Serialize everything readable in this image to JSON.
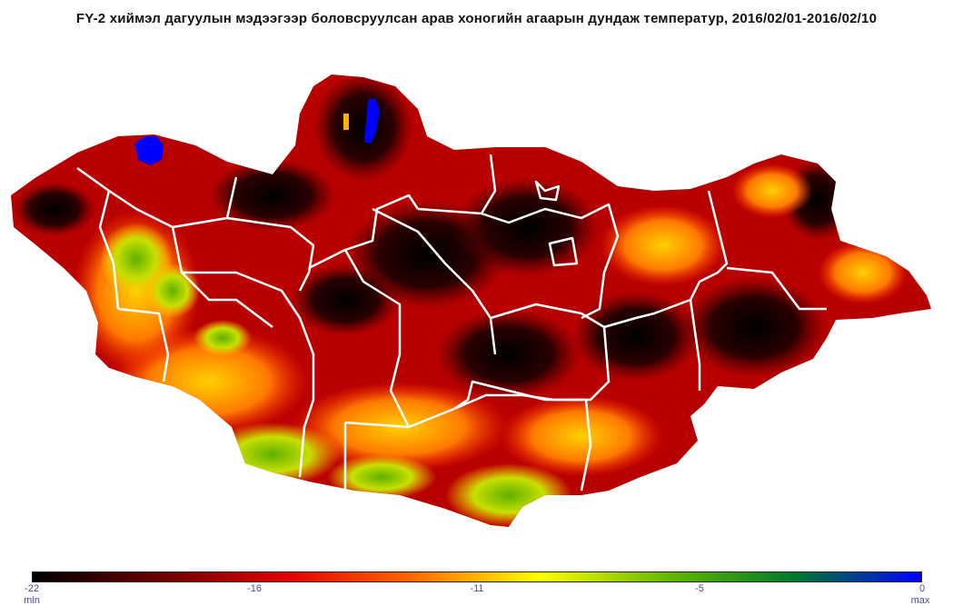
{
  "title": "FY-2 хиймэл дагуулын мэдээгээр боловсруулсан арав хоногийн агаарын дундаж температур, 2016/02/01-2016/02/10",
  "colorbar": {
    "ticks": [
      "-22",
      "-16",
      "-11",
      "-5",
      "0"
    ],
    "min_label": "min",
    "max_label": "max",
    "stops": [
      "#000000",
      "#6b0000",
      "#e00000",
      "#ff6a00",
      "#ffff00",
      "#66b800",
      "#007a2a",
      "#0000ff"
    ]
  },
  "legend_range": [
    -22,
    0
  ]
}
